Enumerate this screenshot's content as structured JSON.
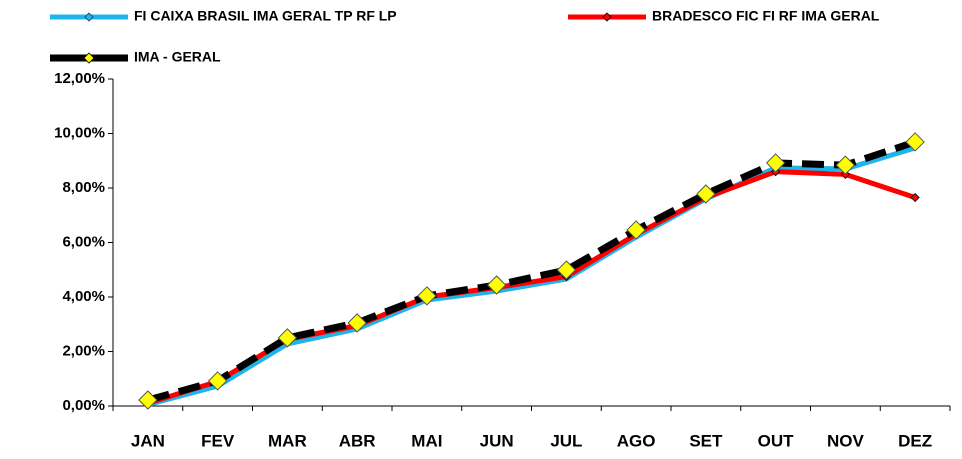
{
  "chart_data": {
    "type": "line",
    "categories": [
      "JAN",
      "FEV",
      "MAR",
      "ABR",
      "MAI",
      "JUN",
      "JUL",
      "AGO",
      "SET",
      "OUT",
      "NOV",
      "DEZ"
    ],
    "series": [
      {
        "name": "FI CAIXA BRASIL IMA GERAL TP RF LP",
        "color": "#1fb4ec",
        "values": [
          0.05,
          0.73,
          2.28,
          2.83,
          3.89,
          4.22,
          4.66,
          6.2,
          7.6,
          8.74,
          8.7,
          9.47
        ]
      },
      {
        "name": "BRADESCO FIC FI RF IMA GERAL",
        "color": "#ff0000",
        "values": [
          0.1,
          0.9,
          2.45,
          2.95,
          4.0,
          4.35,
          4.75,
          6.3,
          7.65,
          8.6,
          8.5,
          7.65
        ]
      },
      {
        "name": "IMA - GERAL",
        "color": "#000000",
        "marker_color": "#ffff00",
        "values": [
          0.22,
          0.92,
          2.5,
          3.05,
          4.04,
          4.44,
          4.99,
          6.46,
          7.78,
          8.92,
          8.84,
          9.69
        ]
      }
    ],
    "ylim": [
      0,
      12
    ],
    "yticks": [
      {
        "value": 0,
        "label": "0,00%"
      },
      {
        "value": 2,
        "label": "2,00%"
      },
      {
        "value": 4,
        "label": "4,00%"
      },
      {
        "value": 6,
        "label": "6,00%"
      },
      {
        "value": 8,
        "label": "8,00%"
      },
      {
        "value": 10,
        "label": "10,00%"
      },
      {
        "value": 12,
        "label": "12,00%"
      }
    ],
    "grid": false
  }
}
